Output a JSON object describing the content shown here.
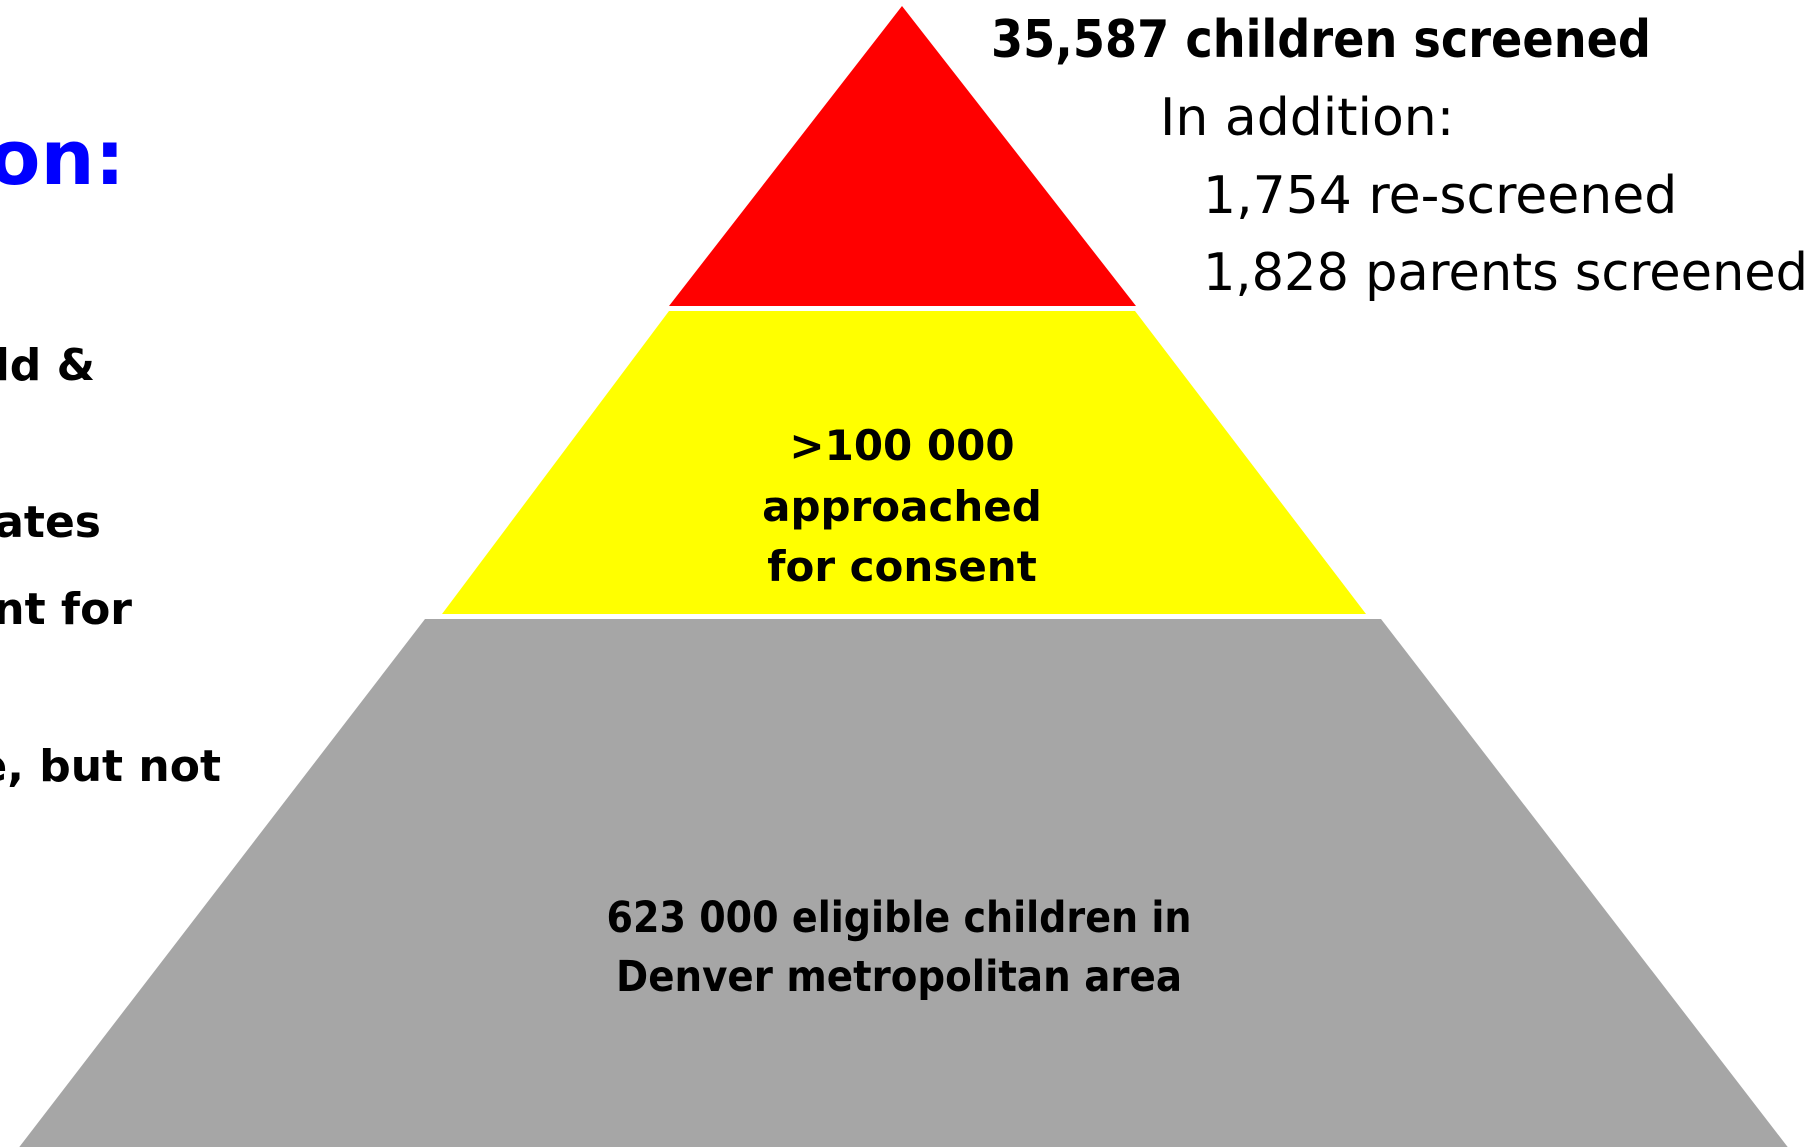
{
  "left_text": {
    "heading": "on:",
    "lines": [
      "ld &",
      "cates",
      "nt for",
      "e, but not"
    ]
  },
  "pyramid": {
    "top_note": {
      "headline": "35,587 children screened",
      "intro": "In addition:",
      "items": [
        "1,754 re-screened",
        "1,828 parents screened"
      ]
    },
    "middle": {
      "lines": [
        ">100 000",
        "approached",
        "for consent"
      ]
    },
    "base": {
      "lines": [
        "623 000 eligible children in",
        "Denver metropolitan area"
      ]
    }
  }
}
